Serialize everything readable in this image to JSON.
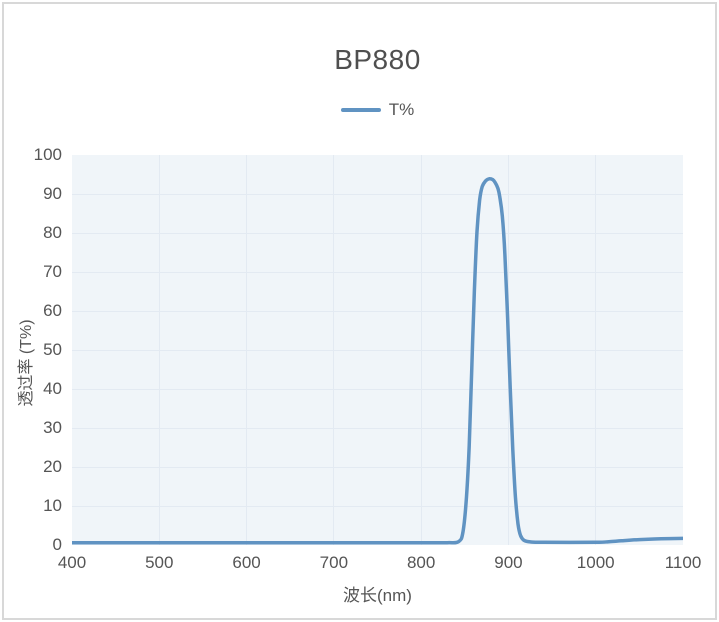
{
  "chart": {
    "title": "BP880",
    "legend": {
      "label": "T%"
    },
    "xlabel": "波长(nm)",
    "ylabel": "透过率 (T%)"
  },
  "colors": {
    "line": "#6093c2",
    "plot_bg": "#f0f5f9",
    "gridline": "#e3eaf2",
    "text": "#555555",
    "title_text": "#4f4f4f",
    "frame_border": "#d8d8d8"
  },
  "chart_data": {
    "type": "line",
    "title": "BP880",
    "xlabel": "波长(nm)",
    "ylabel": "透过率 (T%)",
    "xlim": [
      400,
      1100
    ],
    "ylim": [
      0,
      100
    ],
    "x_ticks": [
      400,
      500,
      600,
      700,
      800,
      900,
      1000,
      1100
    ],
    "y_ticks": [
      0,
      10,
      20,
      30,
      40,
      50,
      60,
      70,
      80,
      90,
      100
    ],
    "grid": true,
    "legend_position": "top-center",
    "series": [
      {
        "name": "T%",
        "color": "#6093c2",
        "points": [
          [
            400,
            0.2
          ],
          [
            500,
            0.2
          ],
          [
            600,
            0.2
          ],
          [
            700,
            0.2
          ],
          [
            800,
            0.2
          ],
          [
            830,
            0.2
          ],
          [
            843,
            0.5
          ],
          [
            848,
            3
          ],
          [
            852,
            12
          ],
          [
            855,
            25
          ],
          [
            858,
            45
          ],
          [
            861,
            65
          ],
          [
            864,
            80
          ],
          [
            867,
            88
          ],
          [
            870,
            91.5
          ],
          [
            874,
            93
          ],
          [
            878,
            93.5
          ],
          [
            882,
            93.3
          ],
          [
            885,
            92.5
          ],
          [
            888,
            91
          ],
          [
            890,
            89
          ],
          [
            893,
            84
          ],
          [
            896,
            74
          ],
          [
            899,
            58
          ],
          [
            902,
            40
          ],
          [
            905,
            24
          ],
          [
            908,
            12
          ],
          [
            911,
            5
          ],
          [
            914,
            2
          ],
          [
            918,
            0.8
          ],
          [
            925,
            0.4
          ],
          [
            940,
            0.3
          ],
          [
            1000,
            0.3
          ],
          [
            1015,
            0.45
          ],
          [
            1030,
            0.7
          ],
          [
            1050,
            1.0
          ],
          [
            1075,
            1.2
          ],
          [
            1100,
            1.3
          ]
        ]
      }
    ]
  }
}
